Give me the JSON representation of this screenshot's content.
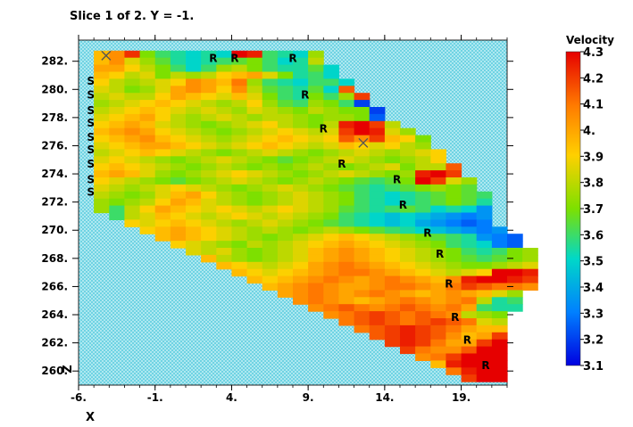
{
  "chart_data": {
    "type": "heatmap",
    "title": "Slice 1 of 2.  Y = -1.",
    "xlabel": "X",
    "ylabel": "Z",
    "x_ticks": [
      "-6.",
      "-1.",
      "4.",
      "9.",
      "14.",
      "19."
    ],
    "y_ticks": [
      "282.",
      "280.",
      "278.",
      "276.",
      "274.",
      "272.",
      "270.",
      "268.",
      "266.",
      "264.",
      "262.",
      "260."
    ],
    "xlim": [
      -6,
      22
    ],
    "ylim": [
      259,
      283.5
    ],
    "colorbar": {
      "title": "Velocity",
      "min": 3.1,
      "max": 4.3,
      "ticks": [
        "4.3",
        "4.2",
        "4.1",
        "4.",
        "3.9",
        "3.8",
        "3.7",
        "3.6",
        "3.5",
        "3.4",
        "3.3",
        "3.2",
        "3.1"
      ]
    },
    "grid": false,
    "null_pattern": "cyan-checkered",
    "sources": [
      {
        "label": "S",
        "x": -5.2,
        "z": 280.6
      },
      {
        "label": "S",
        "x": -5.2,
        "z": 279.6
      },
      {
        "label": "S",
        "x": -5.2,
        "z": 278.5
      },
      {
        "label": "S",
        "x": -5.2,
        "z": 277.6
      },
      {
        "label": "S",
        "x": -5.2,
        "z": 276.6
      },
      {
        "label": "S",
        "x": -5.2,
        "z": 275.7
      },
      {
        "label": "S",
        "x": -5.2,
        "z": 274.7
      },
      {
        "label": "S",
        "x": -5.2,
        "z": 273.6
      },
      {
        "label": "S",
        "x": -5.2,
        "z": 272.7
      }
    ],
    "receivers": [
      {
        "label": "R",
        "x": 2.8,
        "z": 282.2
      },
      {
        "label": "R",
        "x": 4.2,
        "z": 282.2
      },
      {
        "label": "R",
        "x": 8.0,
        "z": 282.2
      },
      {
        "label": "R",
        "x": 8.8,
        "z": 279.6
      },
      {
        "label": "R",
        "x": 10.0,
        "z": 277.2
      },
      {
        "label": "R",
        "x": 11.2,
        "z": 274.7
      },
      {
        "label": "R",
        "x": 14.8,
        "z": 273.6
      },
      {
        "label": "R",
        "x": 15.2,
        "z": 271.8
      },
      {
        "label": "R",
        "x": 16.8,
        "z": 269.8
      },
      {
        "label": "R",
        "x": 17.6,
        "z": 268.3
      },
      {
        "label": "R",
        "x": 18.2,
        "z": 266.2
      },
      {
        "label": "R",
        "x": 18.6,
        "z": 263.8
      },
      {
        "label": "R",
        "x": 19.4,
        "z": 262.2
      },
      {
        "label": "R",
        "x": 20.6,
        "z": 260.4
      }
    ],
    "crosses": [
      {
        "x": -4.2,
        "z": 282.4
      },
      {
        "x": 12.6,
        "z": 276.2
      }
    ],
    "cell_size": {
      "dx": 1.0,
      "dz": 0.5
    },
    "velocity_rows": [
      {
        "z": 282.5,
        "x0": -5,
        "values": [
          3.95,
          4.05,
          4.22,
          3.7,
          3.6,
          3.55,
          3.5,
          3.55,
          3.5,
          4.3,
          4.25,
          3.6,
          3.55,
          3.5,
          3.75
        ]
      },
      {
        "z": 282.0,
        "x0": -5,
        "values": [
          3.95,
          4.05,
          3.85,
          3.75,
          3.65,
          3.55,
          3.5,
          3.55,
          3.6,
          3.65,
          3.7,
          3.6,
          3.5,
          3.55,
          3.8
        ]
      },
      {
        "z": 281.5,
        "x0": -5,
        "values": [
          4.0,
          4.0,
          3.9,
          3.8,
          3.7,
          3.6,
          3.5,
          3.6,
          3.75,
          3.8,
          3.7,
          3.6,
          3.55,
          3.55,
          3.65,
          3.5
        ]
      },
      {
        "z": 281.0,
        "x0": -5,
        "values": [
          3.95,
          3.9,
          3.8,
          3.85,
          3.7,
          3.8,
          3.75,
          3.8,
          3.9,
          3.95,
          4.0,
          3.85,
          3.7,
          3.55,
          3.6,
          3.5
        ]
      },
      {
        "z": 280.5,
        "x0": -5,
        "values": [
          3.9,
          3.8,
          3.75,
          3.8,
          3.85,
          3.9,
          4.05,
          4.0,
          3.95,
          4.1,
          3.75,
          3.6,
          3.55,
          3.5,
          3.6,
          3.6,
          3.5
        ]
      },
      {
        "z": 280.0,
        "x0": -5,
        "values": [
          3.85,
          3.8,
          3.7,
          3.75,
          3.85,
          4.0,
          4.05,
          4.0,
          3.9,
          4.05,
          3.8,
          3.65,
          3.6,
          3.55,
          3.65,
          3.5,
          4.15
        ]
      },
      {
        "z": 279.5,
        "x0": -5,
        "values": [
          3.8,
          3.85,
          3.8,
          3.8,
          3.9,
          4.0,
          3.95,
          3.9,
          3.85,
          3.95,
          3.85,
          3.7,
          3.6,
          3.55,
          3.7,
          3.6,
          3.75,
          4.2
        ]
      },
      {
        "z": 279.0,
        "x0": -5,
        "values": [
          3.75,
          3.8,
          3.85,
          3.9,
          3.95,
          3.9,
          3.85,
          3.8,
          3.75,
          3.8,
          3.9,
          3.75,
          3.65,
          3.6,
          3.75,
          3.7,
          3.6,
          3.2
        ]
      },
      {
        "z": 278.5,
        "x0": -5,
        "values": [
          3.8,
          3.85,
          3.9,
          3.95,
          3.9,
          3.85,
          3.8,
          3.85,
          3.8,
          3.75,
          3.85,
          3.8,
          3.75,
          3.7,
          3.8,
          3.75,
          3.7,
          3.7,
          3.2
        ]
      },
      {
        "z": 278.0,
        "x0": -5,
        "values": [
          3.85,
          3.9,
          3.95,
          4.0,
          3.9,
          3.8,
          3.75,
          3.8,
          3.85,
          3.8,
          3.75,
          3.8,
          3.8,
          3.75,
          3.7,
          3.75,
          3.75,
          3.7,
          3.25
        ]
      },
      {
        "z": 277.5,
        "x0": -5,
        "values": [
          3.9,
          3.95,
          4.0,
          3.95,
          3.85,
          3.8,
          3.75,
          3.7,
          3.75,
          3.8,
          3.85,
          3.9,
          3.8,
          3.75,
          3.7,
          3.8,
          4.25,
          4.3,
          4.2,
          3.8
        ]
      },
      {
        "z": 277.0,
        "x0": -5,
        "values": [
          3.95,
          4.0,
          4.05,
          4.0,
          3.9,
          3.85,
          3.8,
          3.75,
          3.7,
          3.75,
          3.8,
          3.85,
          3.9,
          3.85,
          3.8,
          3.85,
          4.2,
          4.3,
          4.25,
          3.85,
          3.75
        ]
      },
      {
        "z": 276.5,
        "x0": -5,
        "values": [
          3.9,
          3.95,
          4.0,
          4.05,
          3.95,
          3.9,
          3.85,
          3.8,
          3.75,
          3.8,
          3.85,
          3.9,
          3.95,
          3.9,
          3.85,
          3.9,
          4.15,
          4.05,
          4.2,
          3.95,
          3.9,
          3.7
        ]
      },
      {
        "z": 276.0,
        "x0": -5,
        "values": [
          3.85,
          3.9,
          3.95,
          4.0,
          4.0,
          3.95,
          3.9,
          3.85,
          3.8,
          3.85,
          3.9,
          3.95,
          3.9,
          3.85,
          3.8,
          3.85,
          3.95,
          3.9,
          3.85,
          3.9,
          3.8,
          3.75
        ]
      },
      {
        "z": 275.5,
        "x0": -5,
        "values": [
          3.8,
          3.85,
          3.9,
          3.95,
          3.9,
          3.85,
          3.8,
          3.75,
          3.7,
          3.75,
          3.8,
          3.85,
          3.8,
          3.75,
          3.7,
          3.75,
          3.8,
          3.85,
          3.8,
          3.75,
          3.8,
          3.85,
          3.9
        ]
      },
      {
        "z": 275.0,
        "x0": -5,
        "values": [
          3.85,
          3.9,
          3.85,
          3.8,
          3.75,
          3.7,
          3.75,
          3.8,
          3.85,
          3.8,
          3.75,
          3.7,
          3.65,
          3.7,
          3.75,
          3.8,
          3.85,
          3.8,
          3.75,
          3.7,
          3.75,
          3.8,
          3.9
        ]
      },
      {
        "z": 274.5,
        "x0": -5,
        "values": [
          3.9,
          3.95,
          3.9,
          3.85,
          3.8,
          3.75,
          3.7,
          3.75,
          3.8,
          3.75,
          3.7,
          3.75,
          3.7,
          3.75,
          3.8,
          3.75,
          3.7,
          3.75,
          3.8,
          3.85,
          3.7,
          3.8,
          3.8,
          4.15
        ]
      },
      {
        "z": 274.0,
        "x0": -5,
        "values": [
          3.95,
          4.0,
          3.95,
          3.85,
          3.75,
          3.7,
          3.75,
          3.8,
          3.85,
          3.9,
          3.85,
          3.8,
          3.75,
          3.7,
          3.75,
          3.8,
          3.85,
          3.8,
          3.75,
          3.7,
          3.75,
          4.25,
          4.3,
          4.2
        ]
      },
      {
        "z": 273.5,
        "x0": -5,
        "values": [
          3.9,
          3.85,
          3.8,
          3.75,
          3.7,
          3.65,
          3.7,
          3.75,
          3.8,
          3.85,
          3.8,
          3.75,
          3.7,
          3.75,
          3.8,
          3.75,
          3.7,
          3.65,
          3.6,
          3.65,
          3.7,
          4.3,
          4.2,
          3.85,
          3.75
        ]
      },
      {
        "z": 273.0,
        "x0": -5,
        "values": [
          3.85,
          3.8,
          3.75,
          3.8,
          3.85,
          3.9,
          3.85,
          3.8,
          3.75,
          3.7,
          3.75,
          3.8,
          3.85,
          3.8,
          3.75,
          3.7,
          3.65,
          3.6,
          3.55,
          3.6,
          3.65,
          3.7,
          3.75,
          3.7,
          3.65
        ]
      },
      {
        "z": 272.5,
        "x0": -5,
        "values": [
          3.8,
          3.75,
          3.7,
          3.75,
          3.85,
          3.95,
          4.0,
          3.9,
          3.8,
          3.75,
          3.7,
          3.75,
          3.8,
          3.85,
          3.8,
          3.75,
          3.7,
          3.6,
          3.55,
          3.5,
          3.55,
          3.6,
          3.65,
          3.7,
          3.65,
          3.6
        ]
      },
      {
        "z": 272.0,
        "x0": -5,
        "values": [
          3.75,
          3.7,
          3.75,
          3.8,
          3.9,
          4.0,
          3.95,
          3.85,
          3.8,
          3.75,
          3.7,
          3.75,
          3.8,
          3.85,
          3.8,
          3.75,
          3.7,
          3.6,
          3.55,
          3.5,
          3.55,
          3.6,
          3.65,
          3.7,
          3.65,
          3.55
        ]
      },
      {
        "z": 271.5,
        "x0": -5,
        "values": [
          3.75,
          3.6,
          3.8,
          3.9,
          4.0,
          3.95,
          3.9,
          3.85,
          3.9,
          3.85,
          3.8,
          3.85,
          3.9,
          3.85,
          3.8,
          3.75,
          3.65,
          3.6,
          3.55,
          3.6,
          3.65,
          3.6,
          3.5,
          3.55,
          3.5,
          3.35
        ]
      },
      {
        "z": 271.0,
        "x0": -4,
        "values": [
          3.6,
          3.8,
          3.85,
          3.95,
          3.9,
          3.85,
          3.8,
          3.85,
          3.9,
          3.85,
          3.8,
          3.85,
          3.8,
          3.75,
          3.7,
          3.6,
          3.55,
          3.5,
          3.45,
          3.5,
          3.45,
          3.4,
          3.35,
          3.3,
          3.35
        ]
      },
      {
        "z": 270.5,
        "x0": -3,
        "values": [
          3.9,
          3.85,
          3.9,
          3.95,
          3.9,
          3.85,
          3.8,
          3.75,
          3.8,
          3.85,
          3.8,
          3.75,
          3.7,
          3.65,
          3.6,
          3.55,
          3.5,
          3.45,
          3.5,
          3.4,
          3.35,
          3.3,
          3.25,
          3.3
        ]
      },
      {
        "z": 270.0,
        "x0": -2,
        "values": [
          3.9,
          3.95,
          4.0,
          3.95,
          3.9,
          3.85,
          3.8,
          3.75,
          3.8,
          3.75,
          3.7,
          3.75,
          3.8,
          3.75,
          3.7,
          3.65,
          3.6,
          3.55,
          3.5,
          3.45,
          3.4,
          3.35,
          3.3,
          3.35
        ]
      },
      {
        "z": 269.5,
        "x0": -1,
        "values": [
          3.95,
          4.0,
          3.95,
          3.9,
          3.85,
          3.8,
          3.75,
          3.7,
          3.75,
          3.8,
          3.85,
          3.9,
          3.95,
          3.9,
          3.85,
          3.8,
          3.75,
          3.7,
          3.65,
          3.6,
          3.55,
          3.35,
          3.3,
          3.25
        ]
      },
      {
        "z": 269.0,
        "x0": 0,
        "values": [
          3.9,
          3.85,
          3.8,
          3.75,
          3.7,
          3.8,
          3.75,
          3.8,
          3.85,
          3.9,
          3.95,
          4.0,
          3.95,
          3.9,
          3.85,
          3.8,
          3.75,
          3.7,
          3.6,
          3.55,
          3.5,
          3.3,
          3.25
        ]
      },
      {
        "z": 268.5,
        "x0": 1,
        "values": [
          3.85,
          3.8,
          3.85,
          3.75,
          3.7,
          3.75,
          3.8,
          3.85,
          3.95,
          4.0,
          4.05,
          4.0,
          3.95,
          3.9,
          3.85,
          3.8,
          3.75,
          3.7,
          3.6,
          3.55,
          3.6,
          3.7,
          3.75
        ]
      },
      {
        "z": 268.0,
        "x0": 2,
        "values": [
          3.95,
          3.8,
          3.75,
          3.7,
          3.75,
          3.8,
          3.85,
          3.95,
          4.0,
          4.05,
          4.0,
          3.95,
          3.9,
          3.85,
          3.8,
          3.75,
          3.7,
          3.65,
          3.6,
          3.65,
          3.7,
          3.75
        ]
      },
      {
        "z": 267.5,
        "x0": 3,
        "values": [
          3.95,
          3.9,
          3.85,
          3.8,
          3.85,
          3.9,
          4.0,
          4.05,
          4.1,
          4.05,
          4.0,
          3.95,
          3.9,
          3.85,
          3.8,
          3.75,
          3.7,
          3.7,
          3.75,
          3.8,
          3.85
        ]
      },
      {
        "z": 267.0,
        "x0": 4,
        "values": [
          3.95,
          3.9,
          3.85,
          3.9,
          3.95,
          4.0,
          4.05,
          4.1,
          4.1,
          4.05,
          4.0,
          3.95,
          3.9,
          3.85,
          3.8,
          3.85,
          3.9,
          4.3,
          4.3,
          4.25
        ]
      },
      {
        "z": 266.5,
        "x0": 5,
        "values": [
          3.95,
          3.9,
          3.95,
          4.0,
          4.05,
          4.1,
          4.05,
          4.0,
          4.05,
          4.1,
          4.05,
          4.0,
          3.95,
          4.05,
          4.25,
          4.3,
          4.3,
          4.25,
          4.2
        ]
      },
      {
        "z": 266.0,
        "x0": 6,
        "values": [
          3.95,
          4.0,
          4.05,
          4.1,
          4.05,
          4.0,
          4.0,
          4.05,
          4.1,
          4.1,
          4.05,
          4.0,
          4.1,
          4.2,
          4.15,
          4.1,
          4.1,
          4.05
        ]
      },
      {
        "z": 265.5,
        "x0": 7,
        "values": [
          4.0,
          4.05,
          4.1,
          4.05,
          4.0,
          4.05,
          4.1,
          4.05,
          4.0,
          3.95,
          4.0,
          4.05,
          4.0,
          3.95,
          3.85,
          3.75
        ]
      },
      {
        "z": 265.0,
        "x0": 8,
        "values": [
          4.05,
          4.1,
          4.05,
          4.0,
          3.95,
          4.0,
          4.05,
          4.1,
          4.05,
          4.0,
          4.05,
          4.1,
          3.8,
          3.55,
          3.6
        ]
      },
      {
        "z": 264.5,
        "x0": 9,
        "values": [
          4.05,
          4.1,
          4.15,
          4.1,
          4.05,
          4.1,
          4.15,
          4.1,
          4.05,
          4.1,
          4.0,
          3.6,
          3.55,
          3.55
        ]
      },
      {
        "z": 264.0,
        "x0": 10,
        "values": [
          4.05,
          4.1,
          4.15,
          4.2,
          4.15,
          4.1,
          4.15,
          4.1,
          4.05,
          3.8,
          3.75,
          3.7
        ]
      },
      {
        "z": 263.5,
        "x0": 11,
        "values": [
          4.1,
          4.15,
          4.2,
          4.15,
          4.1,
          4.15,
          4.2,
          4.15,
          4.1,
          3.85,
          3.8
        ]
      },
      {
        "z": 263.0,
        "x0": 12,
        "values": [
          4.1,
          4.15,
          4.2,
          4.25,
          4.2,
          4.15,
          4.1,
          4.0,
          3.95,
          3.95
        ]
      },
      {
        "z": 262.5,
        "x0": 13,
        "values": [
          4.15,
          4.2,
          4.25,
          4.2,
          4.15,
          4.05,
          3.95,
          4.0,
          4.2
        ]
      },
      {
        "z": 262.0,
        "x0": 14,
        "values": [
          4.2,
          4.25,
          4.2,
          4.1,
          4.0,
          4.0,
          4.2,
          4.3
        ]
      },
      {
        "z": 261.5,
        "x0": 15,
        "values": [
          4.2,
          4.1,
          4.05,
          4.05,
          4.15,
          4.3,
          4.3
        ]
      },
      {
        "z": 261.0,
        "x0": 16,
        "values": [
          4.05,
          4.1,
          4.2,
          4.3,
          4.3,
          4.3
        ]
      },
      {
        "z": 260.5,
        "x0": 17,
        "values": [
          3.95,
          4.25,
          4.3,
          4.3,
          4.3
        ]
      },
      {
        "z": 260.0,
        "x0": 18,
        "values": [
          4.1,
          4.25,
          4.3,
          4.3
        ]
      },
      {
        "z": 259.5,
        "x0": 19,
        "values": [
          4.2,
          4.3,
          4.3
        ]
      }
    ]
  }
}
